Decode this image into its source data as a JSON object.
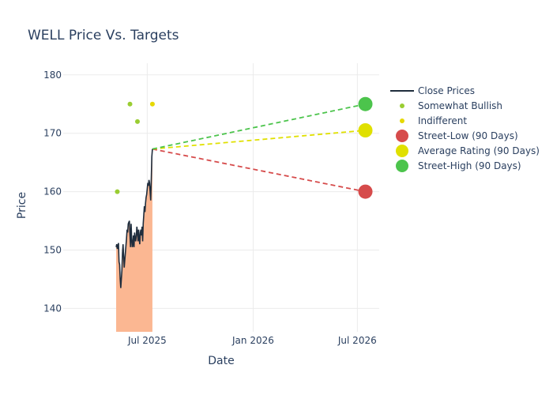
{
  "chart_data": {
    "type": "line",
    "title": "WELL Price Vs. Targets",
    "xlabel": "Date",
    "ylabel": "Price",
    "ylim": [
      136,
      182
    ],
    "yticks": [
      140,
      150,
      160,
      170,
      180
    ],
    "xlim": [
      "2025-02-05",
      "2026-08-08"
    ],
    "xticks": [
      {
        "date": "2025-07-01",
        "label": "Jul 2025"
      },
      {
        "date": "2026-01-01",
        "label": "Jan 2026"
      },
      {
        "date": "2026-07-01",
        "label": "Jul 2026"
      }
    ],
    "grid": true,
    "legend_position": "right",
    "close_prices": {
      "name": "Close Prices",
      "color": "#1f2d3d",
      "fill": "#fbb792",
      "points": [
        [
          "2025-05-08",
          150.5
        ],
        [
          "2025-05-09",
          151.0
        ],
        [
          "2025-05-10",
          150.2
        ],
        [
          "2025-05-12",
          151.2
        ],
        [
          "2025-05-13",
          148.0
        ],
        [
          "2025-05-14",
          147.5
        ],
        [
          "2025-05-15",
          145.0
        ],
        [
          "2025-05-16",
          143.5
        ],
        [
          "2025-05-18",
          146.5
        ],
        [
          "2025-05-19",
          149.5
        ],
        [
          "2025-05-20",
          151.0
        ],
        [
          "2025-05-21",
          149.0
        ],
        [
          "2025-05-22",
          147.0
        ],
        [
          "2025-05-24",
          149.5
        ],
        [
          "2025-05-26",
          152.0
        ],
        [
          "2025-05-27",
          153.5
        ],
        [
          "2025-05-28",
          153.0
        ],
        [
          "2025-05-29",
          154.5
        ],
        [
          "2025-05-31",
          155.0
        ],
        [
          "2025-06-01",
          152.5
        ],
        [
          "2025-06-02",
          150.5
        ],
        [
          "2025-06-03",
          154.5
        ],
        [
          "2025-06-04",
          152.0
        ],
        [
          "2025-06-05",
          150.5
        ],
        [
          "2025-06-06",
          151.0
        ],
        [
          "2025-06-07",
          152.5
        ],
        [
          "2025-06-08",
          150.5
        ],
        [
          "2025-06-09",
          153.0
        ],
        [
          "2025-06-10",
          152.0
        ],
        [
          "2025-06-11",
          151.5
        ],
        [
          "2025-06-12",
          152.5
        ],
        [
          "2025-06-13",
          154.0
        ],
        [
          "2025-06-14",
          153.0
        ],
        [
          "2025-06-15",
          151.5
        ],
        [
          "2025-06-16",
          153.5
        ],
        [
          "2025-06-17",
          152.0
        ],
        [
          "2025-06-18",
          151.0
        ],
        [
          "2025-06-19",
          153.0
        ],
        [
          "2025-06-20",
          153.5
        ],
        [
          "2025-06-21",
          152.5
        ],
        [
          "2025-06-22",
          154.0
        ],
        [
          "2025-06-23",
          151.5
        ],
        [
          "2025-06-24",
          154.5
        ],
        [
          "2025-06-25",
          156.0
        ],
        [
          "2025-06-26",
          157.5
        ],
        [
          "2025-06-27",
          156.5
        ],
        [
          "2025-06-28",
          158.0
        ],
        [
          "2025-06-29",
          159.0
        ],
        [
          "2025-06-30",
          159.5
        ],
        [
          "2025-07-01",
          160.5
        ],
        [
          "2025-07-02",
          161.5
        ],
        [
          "2025-07-03",
          161.0
        ],
        [
          "2025-07-04",
          162.0
        ],
        [
          "2025-07-05",
          161.5
        ],
        [
          "2025-07-06",
          160.0
        ],
        [
          "2025-07-07",
          158.5
        ],
        [
          "2025-07-08",
          162.0
        ],
        [
          "2025-07-09",
          166.0
        ],
        [
          "2025-07-10",
          167.3
        ]
      ]
    },
    "analyst_ratings": [
      {
        "name": "Somewhat Bullish",
        "color": "#9acd32",
        "points": [
          [
            "2025-05-10",
            160
          ],
          [
            "2025-06-01",
            175
          ],
          [
            "2025-06-14",
            172
          ]
        ]
      },
      {
        "name": "Indifferent",
        "color": "#e6d800",
        "points": [
          [
            "2025-07-10",
            175
          ]
        ]
      }
    ],
    "targets": [
      {
        "name": "Street-Low (90 Days)",
        "color": "#d64b4b",
        "value": 160.0
      },
      {
        "name": "Average Rating (90 Days)",
        "color": "#e0e000",
        "value": 170.5
      },
      {
        "name": "Street-High (90 Days)",
        "color": "#4cc44c",
        "value": 175.0
      }
    ],
    "target_start": {
      "date": "2025-07-10",
      "value": 167.3
    },
    "target_date": "2026-07-15"
  }
}
